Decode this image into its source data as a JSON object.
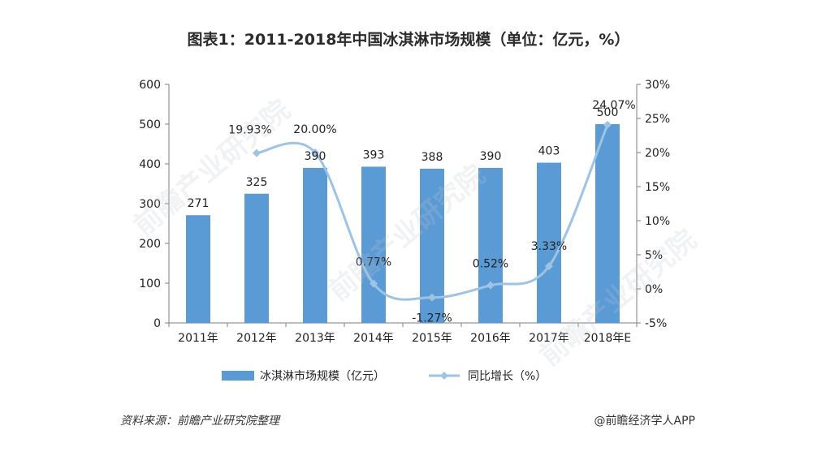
{
  "title": "图表1：2011-2018年中国冰淇淋市场规模（单位：亿元，%）",
  "source": "资料来源：前瞻产业研究院整理",
  "brand": "@前瞻经济学人APP",
  "watermark": "前瞻产业研究院",
  "colors": {
    "bar": "#5b9bd5",
    "line": "#9dc3e6",
    "axis": "#7f7f7f"
  },
  "chart_data": {
    "type": "bar",
    "title": "图表1：2011-2018年中国冰淇淋市场规模（单位：亿元，%）",
    "categories": [
      "2011年",
      "2012年",
      "2013年",
      "2014年",
      "2015年",
      "2016年",
      "2017年",
      "2018年E"
    ],
    "series": [
      {
        "name": "冰淇淋市场规模（亿元）",
        "type": "bar",
        "axis": "left",
        "values": [
          271,
          325,
          390,
          393,
          388,
          390,
          403,
          500
        ],
        "labels": [
          "271",
          "325",
          "390",
          "393",
          "388",
          "390",
          "403",
          "500"
        ]
      },
      {
        "name": "同比增长（%）",
        "type": "line",
        "axis": "right",
        "values": [
          null,
          19.93,
          20.0,
          0.77,
          -1.27,
          0.52,
          3.33,
          24.07
        ],
        "labels": [
          "",
          "19.93%",
          "20.00%",
          "0.77%",
          "-1.27%",
          "0.52%",
          "3.33%",
          "24.07%"
        ]
      }
    ],
    "y_left": {
      "min": 0,
      "max": 600,
      "ticks": [
        "0",
        "100",
        "200",
        "300",
        "400",
        "500",
        "600"
      ]
    },
    "y_right": {
      "min": -5,
      "max": 30,
      "ticks": [
        "-5%",
        "0%",
        "5%",
        "10%",
        "15%",
        "20%",
        "25%",
        "30%"
      ]
    },
    "legend_position": "bottom",
    "grid": false
  }
}
